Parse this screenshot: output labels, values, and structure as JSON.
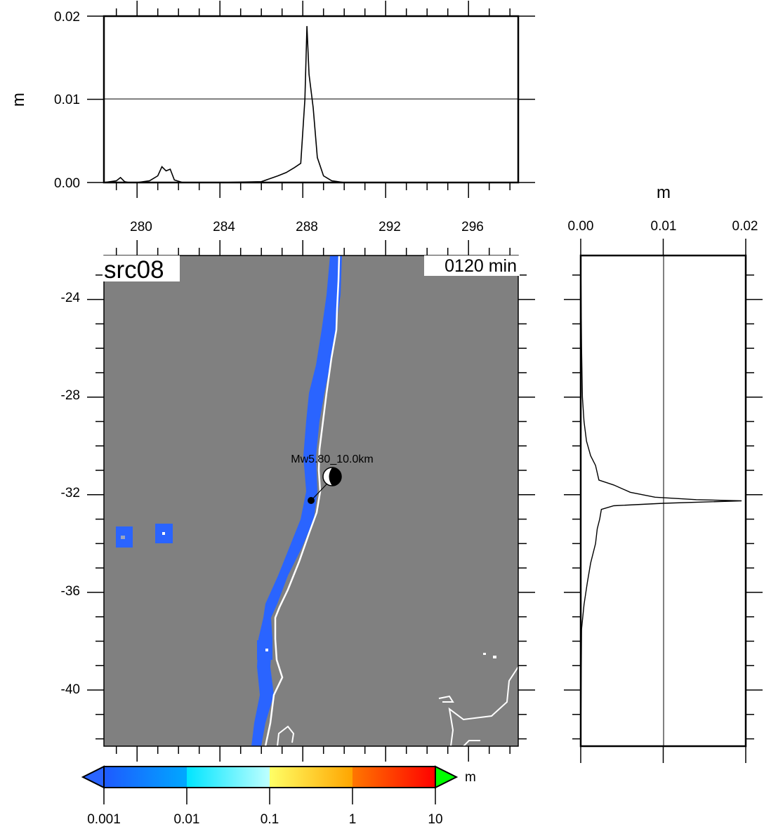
{
  "top_panel": {
    "unit": "m",
    "y_ticks": [
      "0.00",
      "0.01",
      "0.02"
    ],
    "x_ticks": [
      "280",
      "284",
      "288",
      "292",
      "296"
    ],
    "chart_data": {
      "type": "line",
      "xlim": [
        278.4,
        298.4
      ],
      "ylim": [
        0,
        0.02
      ],
      "x": [
        278.4,
        279.0,
        279.2,
        279.4,
        279.6,
        280.0,
        280.6,
        281.0,
        281.2,
        281.4,
        281.6,
        281.8,
        282.2,
        284.0,
        286.0,
        286.8,
        287.2,
        287.6,
        287.9,
        288.1,
        288.2,
        288.3,
        288.5,
        288.7,
        289.0,
        289.4,
        290.0,
        298.4
      ],
      "y": [
        0,
        0.0002,
        0.0006,
        0.0001,
        0,
        0,
        0.0002,
        0.0008,
        0.0019,
        0.0014,
        0.0016,
        0.0003,
        0,
        0,
        0.0001,
        0.0008,
        0.0012,
        0.0018,
        0.0023,
        0.01,
        0.0188,
        0.013,
        0.009,
        0.003,
        0.0008,
        0.0002,
        0,
        0
      ]
    }
  },
  "right_panel": {
    "unit": "m",
    "x_ticks": [
      "0.00",
      "0.01",
      "0.02"
    ],
    "chart_data": {
      "type": "line",
      "xlim": [
        0,
        0.02
      ],
      "ylim": [
        -42.3,
        -22.2
      ],
      "lat": [
        -22.2,
        -26.0,
        -28.0,
        -29.0,
        -29.8,
        -30.4,
        -30.8,
        -31.4,
        -31.6,
        -31.9,
        -32.1,
        -32.2,
        -32.25,
        -32.35,
        -32.45,
        -32.6,
        -33.0,
        -33.4,
        -34.0,
        -34.8,
        -35.6,
        -36.5,
        -37.5,
        -42.3
      ],
      "values": [
        0,
        0.0001,
        0.0002,
        0.0004,
        0.0007,
        0.0012,
        0.0018,
        0.0022,
        0.004,
        0.006,
        0.009,
        0.014,
        0.0195,
        0.01,
        0.004,
        0.0025,
        0.0023,
        0.002,
        0.0018,
        0.0012,
        0.0008,
        0.0004,
        0.0001,
        0
      ]
    }
  },
  "map": {
    "label": "src08",
    "time": "0120 min",
    "event_label": "Mw5.80_10.0km",
    "y_ticks": [
      "-24",
      "-28",
      "-32",
      "-36",
      "-40"
    ],
    "lon_range": [
      278.4,
      298.4
    ],
    "lat_range": [
      -42.3,
      -22.2
    ],
    "epicenter": {
      "lon": 288.2,
      "lat": -32.3
    },
    "beachball": {
      "lon": 289.2,
      "lat": -31.2
    },
    "ocean_color": "#808080",
    "coast_color": "#ffffff",
    "band_color": "#2a64ff"
  },
  "colorbar": {
    "unit": "m",
    "labels": [
      "0.001",
      "0.01",
      "0.1",
      "1",
      "10"
    ],
    "under_color": "#2a64ff",
    "over_color": "#00ff00"
  }
}
